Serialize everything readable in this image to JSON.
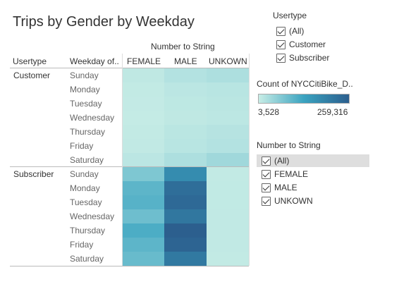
{
  "title": "Trips by Gender by Weekday",
  "header": {
    "group_label": "Number to String",
    "col1": "Usertype",
    "col2": "Weekday of..",
    "genders": [
      "FEMALE",
      "MALE",
      "UNKOWN"
    ]
  },
  "usertype_filter": {
    "title": "Usertype",
    "items": [
      {
        "label": "(All)",
        "checked": true
      },
      {
        "label": "Customer",
        "checked": true
      },
      {
        "label": "Subscriber",
        "checked": true
      }
    ]
  },
  "color_legend": {
    "title": "Count of NYCCitiBike_D..",
    "min_label": "3,528",
    "max_label": "259,316"
  },
  "gender_filter": {
    "title": "Number to String",
    "items": [
      {
        "label": "(All)",
        "checked": true,
        "highlighted": true
      },
      {
        "label": "FEMALE",
        "checked": true
      },
      {
        "label": "MALE",
        "checked": true
      },
      {
        "label": "UNKOWN",
        "checked": true
      }
    ]
  },
  "chart_data": {
    "type": "heatmap",
    "title": "Trips by Gender by Weekday",
    "row_groups": [
      "Customer",
      "Subscriber"
    ],
    "weekdays": [
      "Sunday",
      "Monday",
      "Tuesday",
      "Wednesday",
      "Thursday",
      "Friday",
      "Saturday"
    ],
    "columns": [
      "FEMALE",
      "MALE",
      "UNKOWN"
    ],
    "color_range": [
      3528,
      259316
    ],
    "colors": [
      "#c8ede6",
      "#3aa3c0",
      "#2c5f8e"
    ],
    "values": {
      "Customer": [
        [
          12000,
          22000,
          28000
        ],
        [
          9000,
          15000,
          18000
        ],
        [
          8000,
          13000,
          16000
        ],
        [
          7000,
          12000,
          14000
        ],
        [
          9000,
          16000,
          20000
        ],
        [
          10000,
          18000,
          22000
        ],
        [
          15000,
          28000,
          40000
        ]
      ],
      "Subscriber": [
        [
          70000,
          175000,
          9000
        ],
        [
          100000,
          232000,
          9500
        ],
        [
          105000,
          240000,
          9500
        ],
        [
          85000,
          215000,
          9800
        ],
        [
          115000,
          259316,
          10000
        ],
        [
          100000,
          250000,
          9700
        ],
        [
          90000,
          210000,
          9000
        ]
      ]
    }
  }
}
